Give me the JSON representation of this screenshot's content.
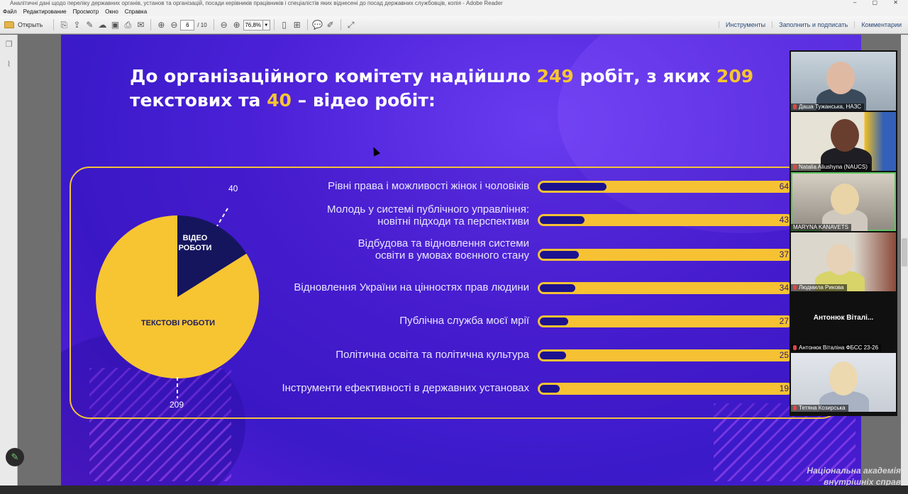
{
  "window": {
    "title": "Аналітичні дані щодо переліку державних органів, установ та організацій, посади керівників працівників і спеціалістів яких віднесені до посад державних службовців, копія - Adobe Reader"
  },
  "menu": [
    "Файл",
    "Редактирование",
    "Просмотр",
    "Окно",
    "Справка"
  ],
  "toolbar": {
    "open_label": "Открыть",
    "page_current": "6",
    "page_total": "/ 10",
    "zoom": "76,8%",
    "right": [
      "Инструменты",
      "Заполнить и подписать",
      "Комментарии"
    ]
  },
  "slide": {
    "title_parts": [
      "До організаційного комітету надійшло ",
      "249",
      " робіт, з яких ",
      "209",
      " текстових та ",
      "40",
      " – відео робіт:"
    ],
    "pie": {
      "video_label_1": "ВІДЕО",
      "video_label_2": "РОБОТИ",
      "text_label": "ТЕКСТОВІ РОБОТИ",
      "video_value": "40",
      "text_value": "209",
      "colors": {
        "text": "#f7c531",
        "video": "#15155e"
      }
    },
    "bars": [
      {
        "label": "Рівні права і можливості жінок і чоловіків",
        "value": 64
      },
      {
        "label": "Молодь у системі публічного управління:\nновітні підходи та перспективи",
        "value": 43
      },
      {
        "label": "Відбудова та відновлення системи\nосвіти в умовах воєнного стану",
        "value": 37
      },
      {
        "label": "Відновлення України на цінностях прав людини",
        "value": 34
      },
      {
        "label": "Публічна служба моєї мрії",
        "value": 27
      },
      {
        "label": "Політична освіта та політична культура",
        "value": 25
      },
      {
        "label": "Інструменти ефективності в державних установах",
        "value": 19
      }
    ],
    "bar_max": 240
  },
  "participants": [
    {
      "name": "Даша Тужанська, НАЗС",
      "muted": true
    },
    {
      "name": "Natalia Aliushyna (NAUCS)",
      "muted": true
    },
    {
      "name": "MARYNA KANAVETS",
      "muted": false
    },
    {
      "name": "Людмила Рикова",
      "muted": true
    },
    {
      "name": "Антонюк Віталіна ФБСС 23-26",
      "muted": true,
      "big_name": "Антонюк Віталі..."
    },
    {
      "name": "Тетяна Козирська",
      "muted": true
    }
  ],
  "watermark": [
    "Національна академія",
    "внутрішніх справ"
  ],
  "icons": [
    "folder-icon",
    "print-icon",
    "mail-icon",
    "prev-page-icon",
    "next-page-icon",
    "zoom-out-icon",
    "zoom-in-icon",
    "comment-icon",
    "highlight-icon",
    "fullscreen-icon",
    "pages-icon",
    "attachment-icon",
    "pen-icon",
    "mic-muted-icon"
  ]
}
